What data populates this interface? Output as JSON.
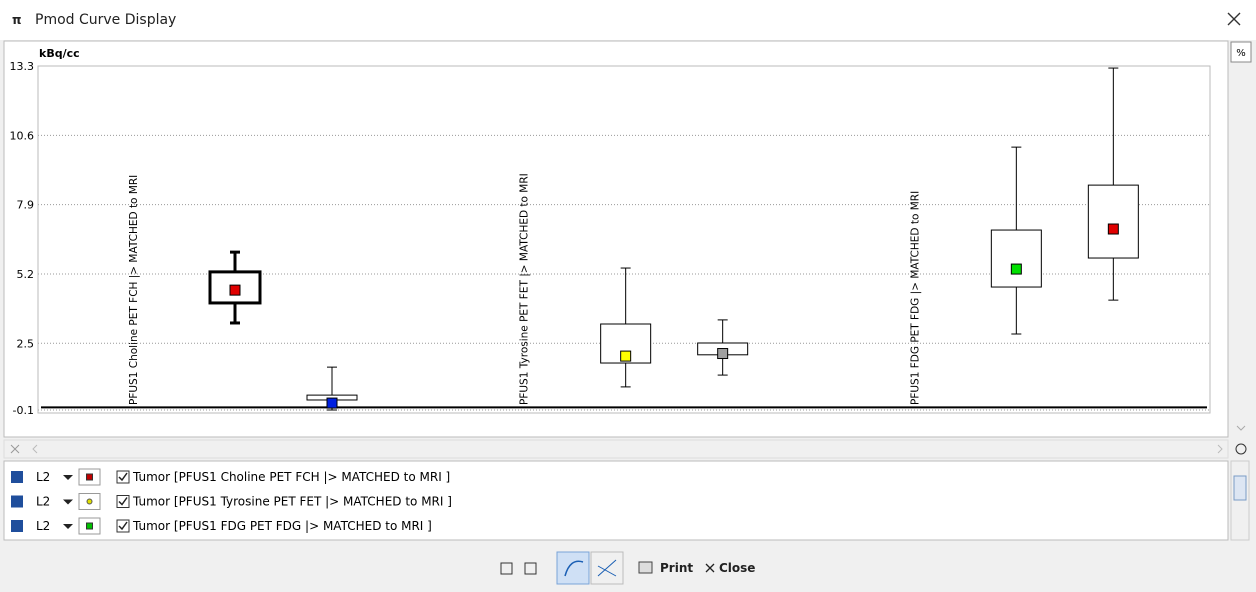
{
  "window": {
    "title": "Pmod Curve Display",
    "percent_button": "%"
  },
  "chart_data": {
    "type": "box",
    "ylabel": "kBq/cc",
    "ylim": [
      -0.1,
      13.3
    ],
    "yticks": [
      13.3,
      10.6,
      7.9,
      5.2,
      2.5,
      -0.1
    ],
    "grid": true,
    "groups": [
      {
        "label": "PFUS1 Choline PET FCH |> MATCHED to MRI",
        "boxes": [
          {
            "color": "#e00000",
            "line_width": 3,
            "min": 3.29,
            "q1": 4.07,
            "mid": 4.57,
            "q3": 5.28,
            "max": 6.05
          },
          {
            "color": "#0020e0",
            "line_width": 1,
            "min": -0.1,
            "q1": 0.29,
            "mid": 0.17,
            "q3": 0.48,
            "max": 1.57
          }
        ]
      },
      {
        "label": "PFUS1 Tyrosine PET FET |> MATCHED to MRI",
        "boxes": [
          {
            "color": "#ffff00",
            "line_width": 1,
            "min": 0.8,
            "q1": 1.73,
            "mid": 2.0,
            "q3": 3.25,
            "max": 5.43
          },
          {
            "color": "#a0a0a0",
            "line_width": 1,
            "min": 1.26,
            "q1": 2.05,
            "mid": 2.1,
            "q3": 2.51,
            "max": 3.41
          }
        ]
      },
      {
        "label": "PFUS1 FDG PET FDG |> MATCHED to MRI",
        "boxes": [
          {
            "color": "#00e000",
            "line_width": 1,
            "min": 2.86,
            "q1": 4.69,
            "mid": 5.39,
            "q3": 6.91,
            "max": 10.14
          },
          {
            "color": "#e00000",
            "line_width": 1,
            "min": 4.18,
            "q1": 5.82,
            "mid": 6.95,
            "q3": 8.66,
            "max": 13.22
          }
        ]
      }
    ]
  },
  "legend_rows": [
    {
      "level": "L2",
      "label": "Tumor [PFUS1 Choline PET FCH |> MATCHED to MRI ]",
      "color": "#c00000",
      "marker": "square"
    },
    {
      "level": "L2",
      "label": "Tumor [PFUS1 Tyrosine PET FET |> MATCHED to MRI ]",
      "color": "#e0e000",
      "marker": "circle"
    },
    {
      "level": "L2",
      "label": "Tumor [PFUS1 FDG PET FDG |> MATCHED to MRI ]",
      "color": "#00c000",
      "marker": "square"
    }
  ],
  "buttons": {
    "print": "Print",
    "close": "Close"
  }
}
